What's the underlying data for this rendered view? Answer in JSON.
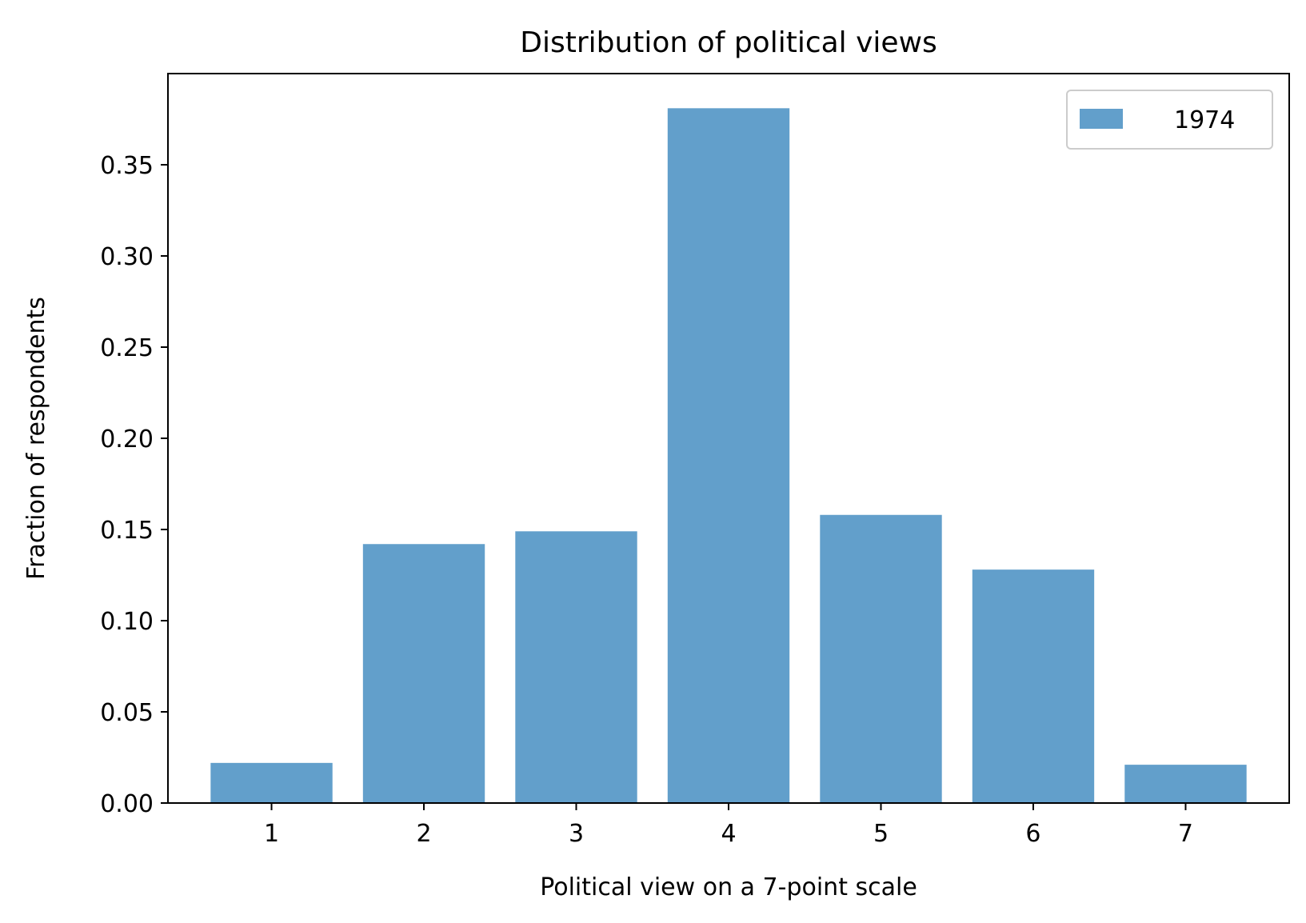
{
  "chart_data": {
    "type": "bar",
    "title": "Distribution of political views",
    "xlabel": "Political view on a 7-point scale",
    "ylabel": "Fraction of respondents",
    "categories": [
      "1",
      "2",
      "3",
      "4",
      "5",
      "6",
      "7"
    ],
    "series": [
      {
        "name": "1974",
        "color": "#629fcb",
        "values": [
          0.022,
          0.142,
          0.149,
          0.381,
          0.158,
          0.128,
          0.021
        ]
      }
    ],
    "ylim": [
      0,
      0.4
    ],
    "yticks": [
      "0.00",
      "0.05",
      "0.10",
      "0.15",
      "0.20",
      "0.25",
      "0.30",
      "0.35"
    ],
    "grid": false,
    "legend_position": "top-right"
  }
}
